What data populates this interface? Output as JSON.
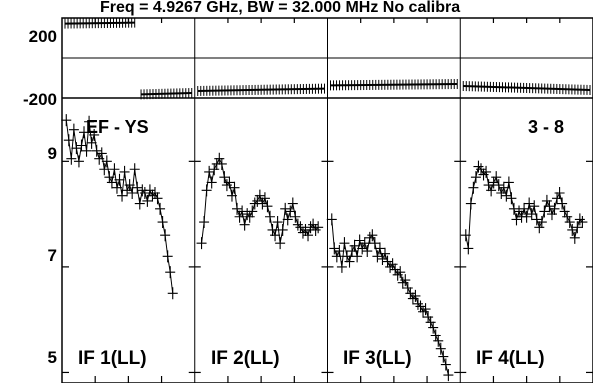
{
  "chart_data": {
    "type": "scatter",
    "title": "Freq = 4.9267 GHz, BW = 32.000 MHz No calibra",
    "phase_axis": {
      "tick_labels": [
        "200",
        "-200"
      ],
      "ylim": [
        -200,
        200
      ]
    },
    "amp_axis": {
      "tick_labels": [
        "9",
        "7",
        "5"
      ],
      "ylim": [
        4.8,
        10.2
      ]
    },
    "baseline_label": "EF - YS",
    "scan_label": "3 - 8",
    "panels": [
      {
        "label": "IF 1(LL)",
        "phase_segments": [
          {
            "x": [
              0.0,
              0.55
            ],
            "y": [
              172,
              177
            ]
          },
          {
            "x": [
              0.6,
              1.0
            ],
            "y": [
              -182,
              -175
            ]
          }
        ],
        "amp": [
          [
            0.01,
            9.78
          ],
          [
            0.03,
            9.4
          ],
          [
            0.05,
            9.05
          ],
          [
            0.07,
            9.6
          ],
          [
            0.09,
            9.25
          ],
          [
            0.11,
            9.0
          ],
          [
            0.13,
            9.3
          ],
          [
            0.15,
            9.55
          ],
          [
            0.17,
            9.2
          ],
          [
            0.19,
            9.75
          ],
          [
            0.21,
            9.35
          ],
          [
            0.23,
            9.5
          ],
          [
            0.25,
            9.2
          ],
          [
            0.27,
            9.05
          ],
          [
            0.29,
            9.15
          ],
          [
            0.31,
            8.85
          ],
          [
            0.33,
            9.0
          ],
          [
            0.35,
            8.7
          ],
          [
            0.37,
            8.6
          ],
          [
            0.39,
            8.85
          ],
          [
            0.41,
            8.5
          ],
          [
            0.43,
            8.65
          ],
          [
            0.45,
            8.35
          ],
          [
            0.47,
            8.8
          ],
          [
            0.49,
            8.45
          ],
          [
            0.51,
            8.55
          ],
          [
            0.53,
            8.4
          ],
          [
            0.55,
            8.85
          ],
          [
            0.57,
            8.5
          ],
          [
            0.59,
            8.2
          ],
          [
            0.61,
            8.45
          ],
          [
            0.63,
            8.4
          ],
          [
            0.65,
            8.25
          ],
          [
            0.67,
            8.45
          ],
          [
            0.69,
            8.35
          ],
          [
            0.71,
            8.4
          ],
          [
            0.73,
            8.3
          ],
          [
            0.75,
            8.1
          ],
          [
            0.77,
            7.85
          ],
          [
            0.79,
            7.6
          ],
          [
            0.81,
            7.2
          ],
          [
            0.83,
            6.9
          ],
          [
            0.85,
            6.5
          ]
        ]
      },
      {
        "label": "IF 2(LL)",
        "phase_segments": [
          {
            "x": [
              0.0,
              1.0
            ],
            "y": [
              -165,
              -153
            ]
          }
        ],
        "amp": [
          [
            0.03,
            7.45
          ],
          [
            0.05,
            7.85
          ],
          [
            0.07,
            8.45
          ],
          [
            0.09,
            8.8
          ],
          [
            0.11,
            8.6
          ],
          [
            0.13,
            8.85
          ],
          [
            0.15,
            8.95
          ],
          [
            0.17,
            9.05
          ],
          [
            0.19,
            8.95
          ],
          [
            0.21,
            8.7
          ],
          [
            0.23,
            8.55
          ],
          [
            0.25,
            8.6
          ],
          [
            0.27,
            8.35
          ],
          [
            0.29,
            8.5
          ],
          [
            0.31,
            8.1
          ],
          [
            0.33,
            7.95
          ],
          [
            0.35,
            8.05
          ],
          [
            0.37,
            7.8
          ],
          [
            0.39,
            8.0
          ],
          [
            0.41,
            7.95
          ],
          [
            0.43,
            8.05
          ],
          [
            0.45,
            8.2
          ],
          [
            0.47,
            8.25
          ],
          [
            0.49,
            8.35
          ],
          [
            0.51,
            8.2
          ],
          [
            0.53,
            8.3
          ],
          [
            0.55,
            8.15
          ],
          [
            0.57,
            7.95
          ],
          [
            0.59,
            7.7
          ],
          [
            0.61,
            7.6
          ],
          [
            0.63,
            7.85
          ],
          [
            0.65,
            7.45
          ],
          [
            0.67,
            7.7
          ],
          [
            0.69,
            8.1
          ],
          [
            0.71,
            7.9
          ],
          [
            0.73,
            8.05
          ],
          [
            0.75,
            8.2
          ],
          [
            0.77,
            7.95
          ],
          [
            0.79,
            7.8
          ],
          [
            0.81,
            7.75
          ],
          [
            0.83,
            7.65
          ],
          [
            0.85,
            7.7
          ],
          [
            0.87,
            7.6
          ],
          [
            0.89,
            7.75
          ],
          [
            0.91,
            7.8
          ],
          [
            0.93,
            7.7
          ],
          [
            0.95,
            7.75
          ]
        ]
      },
      {
        "label": "IF 3(LL)",
        "phase_segments": [
          {
            "x": [
              0.0,
              1.0
            ],
            "y": [
              -137,
              -130
            ]
          }
        ],
        "amp": [
          [
            0.01,
            7.9
          ],
          [
            0.03,
            7.35
          ],
          [
            0.05,
            7.2
          ],
          [
            0.07,
            7.3
          ],
          [
            0.09,
            7.0
          ],
          [
            0.11,
            7.45
          ],
          [
            0.13,
            7.2
          ],
          [
            0.15,
            7.1
          ],
          [
            0.17,
            7.3
          ],
          [
            0.19,
            7.4
          ],
          [
            0.21,
            7.2
          ],
          [
            0.23,
            7.5
          ],
          [
            0.25,
            7.35
          ],
          [
            0.27,
            7.45
          ],
          [
            0.29,
            7.3
          ],
          [
            0.31,
            7.55
          ],
          [
            0.33,
            7.6
          ],
          [
            0.35,
            7.45
          ],
          [
            0.37,
            7.2
          ],
          [
            0.39,
            7.35
          ],
          [
            0.41,
            7.15
          ],
          [
            0.43,
            7.25
          ],
          [
            0.45,
            7.1
          ],
          [
            0.47,
            7.0
          ],
          [
            0.49,
            7.05
          ],
          [
            0.51,
            6.95
          ],
          [
            0.53,
            6.85
          ],
          [
            0.55,
            6.9
          ],
          [
            0.57,
            6.7
          ],
          [
            0.59,
            6.75
          ],
          [
            0.61,
            6.6
          ],
          [
            0.63,
            6.5
          ],
          [
            0.65,
            6.4
          ],
          [
            0.67,
            6.45
          ],
          [
            0.69,
            6.3
          ],
          [
            0.71,
            6.25
          ],
          [
            0.73,
            6.15
          ],
          [
            0.75,
            6.2
          ],
          [
            0.77,
            6.05
          ],
          [
            0.79,
            5.95
          ],
          [
            0.81,
            5.85
          ],
          [
            0.83,
            5.7
          ],
          [
            0.85,
            5.6
          ],
          [
            0.87,
            5.45
          ],
          [
            0.89,
            5.3
          ],
          [
            0.91,
            5.15
          ],
          [
            0.93,
            4.95
          ]
        ]
      },
      {
        "label": "IF 4(LL)",
        "phase_segments": [
          {
            "x": [
              0.0,
              1.0
            ],
            "y": [
              -140,
              -160
            ]
          }
        ],
        "amp": [
          [
            0.02,
            7.6
          ],
          [
            0.04,
            7.35
          ],
          [
            0.06,
            8.2
          ],
          [
            0.08,
            8.5
          ],
          [
            0.1,
            8.7
          ],
          [
            0.12,
            8.9
          ],
          [
            0.14,
            8.85
          ],
          [
            0.16,
            8.75
          ],
          [
            0.18,
            8.8
          ],
          [
            0.2,
            8.55
          ],
          [
            0.22,
            8.45
          ],
          [
            0.24,
            8.6
          ],
          [
            0.26,
            8.7
          ],
          [
            0.28,
            8.55
          ],
          [
            0.3,
            8.4
          ],
          [
            0.32,
            8.5
          ],
          [
            0.34,
            8.35
          ],
          [
            0.36,
            8.6
          ],
          [
            0.38,
            8.3
          ],
          [
            0.4,
            8.1
          ],
          [
            0.42,
            7.9
          ],
          [
            0.44,
            8.05
          ],
          [
            0.46,
            7.95
          ],
          [
            0.48,
            8.1
          ],
          [
            0.5,
            7.95
          ],
          [
            0.52,
            8.2
          ],
          [
            0.54,
            8.0
          ],
          [
            0.56,
            8.15
          ],
          [
            0.58,
            7.9
          ],
          [
            0.6,
            7.75
          ],
          [
            0.62,
            7.85
          ],
          [
            0.64,
            8.05
          ],
          [
            0.66,
            8.25
          ],
          [
            0.68,
            8.15
          ],
          [
            0.7,
            8.0
          ],
          [
            0.72,
            8.1
          ],
          [
            0.74,
            8.3
          ],
          [
            0.76,
            8.4
          ],
          [
            0.78,
            8.2
          ],
          [
            0.8,
            8.05
          ],
          [
            0.82,
            7.95
          ],
          [
            0.84,
            7.85
          ],
          [
            0.86,
            7.7
          ],
          [
            0.88,
            7.55
          ],
          [
            0.9,
            7.75
          ],
          [
            0.92,
            7.9
          ],
          [
            0.94,
            7.85
          ]
        ]
      }
    ]
  }
}
